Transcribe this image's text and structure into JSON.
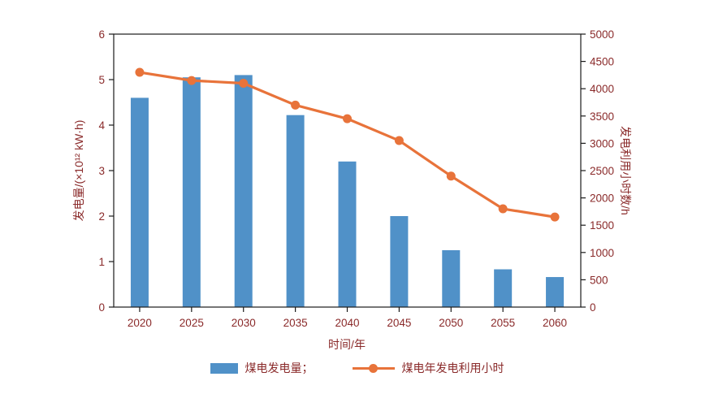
{
  "colors": {
    "bar": "#5091c8",
    "line": "#e8733a",
    "text": "#8a2a2a",
    "frame": "#1a1a1a",
    "background": "#ffffff"
  },
  "chart_data": {
    "type": "bar",
    "subtype": "bar+line combo, dual y-axes",
    "categories": [
      "2020",
      "2025",
      "2030",
      "2035",
      "2040",
      "2045",
      "2050",
      "2055",
      "2060"
    ],
    "series": [
      {
        "name": "煤电发电量",
        "type": "bar",
        "axis": "left",
        "values": [
          4.6,
          5.05,
          5.1,
          4.22,
          3.2,
          2.0,
          1.25,
          0.83,
          0.66
        ]
      },
      {
        "name": "煤电年发电利用小时",
        "type": "line",
        "axis": "right",
        "values": [
          4300,
          4150,
          4100,
          3700,
          3450,
          3050,
          2400,
          1800,
          1650
        ]
      }
    ],
    "x_axis": {
      "label": "时间/年"
    },
    "left_axis": {
      "label": "发电量/(×10¹² kW·h)",
      "min": 0,
      "max": 6,
      "step": 1
    },
    "right_axis": {
      "label": "发电利用小时数/h",
      "min": 0,
      "max": 5000,
      "step": 500
    },
    "grid": false,
    "legend_position": "bottom",
    "legend": [
      {
        "label": "煤电发电量；",
        "marker": "bar"
      },
      {
        "label": "煤电年发电利用小时",
        "marker": "line"
      }
    ]
  }
}
